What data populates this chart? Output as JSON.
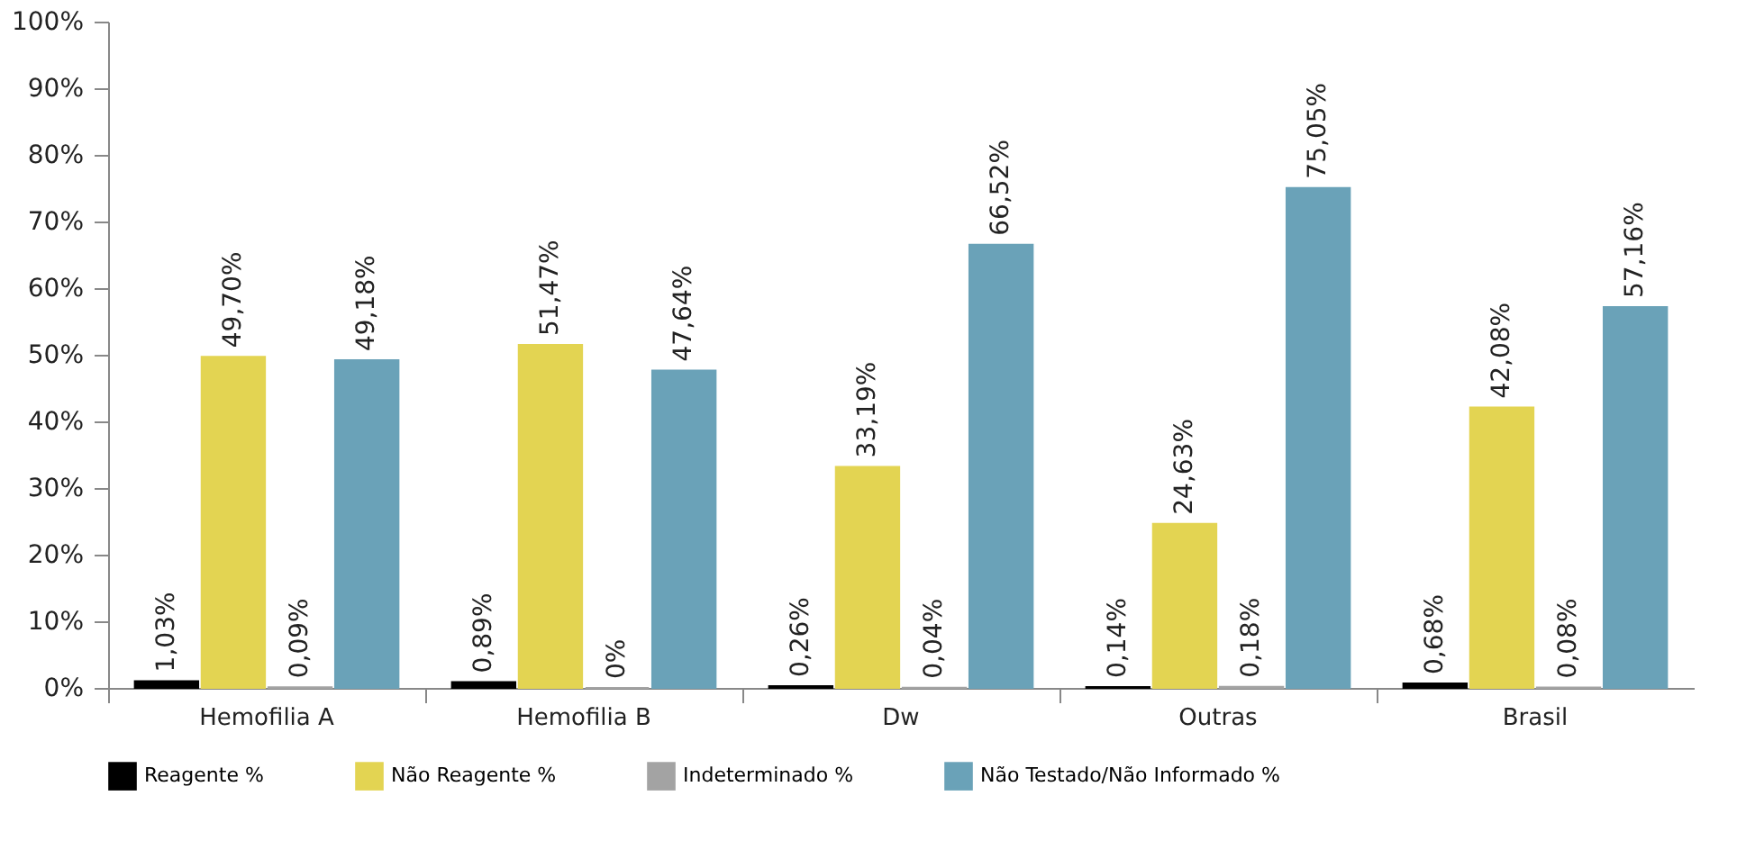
{
  "chart_data": {
    "type": "bar",
    "categories": [
      "Hemofilia A",
      "Hemofilia B",
      "Dw",
      "Outras",
      "Brasil"
    ],
    "series": [
      {
        "name": "Reagente %",
        "color": "#000000",
        "values": [
          1.03,
          0.89,
          0.26,
          0.14,
          0.68
        ],
        "value_labels": [
          "1,03%",
          "0,89%",
          "0,26%",
          "0,14%",
          "0,68%"
        ]
      },
      {
        "name": "Não Reagente %",
        "color": "#e3d452",
        "values": [
          49.7,
          51.47,
          33.19,
          24.63,
          42.08
        ],
        "value_labels": [
          "49,70%",
          "51,47%",
          "33,19%",
          "24,63%",
          "42,08%"
        ]
      },
      {
        "name": "Indeterminado %",
        "color": "#a3a3a3",
        "values": [
          0.09,
          0,
          0.04,
          0.18,
          0.08
        ],
        "value_labels": [
          "0,09%",
          "0%",
          "0,04%",
          "0,18%",
          "0,08%"
        ]
      },
      {
        "name": "Não Testado/Não Informado %",
        "color": "#6aa2b8",
        "values": [
          49.18,
          47.64,
          66.52,
          75.05,
          57.16
        ],
        "value_labels": [
          "49,18%",
          "47,64%",
          "66,52%",
          "75,05%",
          "57,16%"
        ]
      }
    ],
    "ylim": [
      0,
      100
    ],
    "yticks": [
      {
        "value": 0,
        "label": "0%"
      },
      {
        "value": 10,
        "label": "10%"
      },
      {
        "value": 20,
        "label": "20%"
      },
      {
        "value": 30,
        "label": "30%"
      },
      {
        "value": 40,
        "label": "40%"
      },
      {
        "value": 50,
        "label": "50%"
      },
      {
        "value": 60,
        "label": "60%"
      },
      {
        "value": 70,
        "label": "70%"
      },
      {
        "value": 80,
        "label": "80%"
      },
      {
        "value": 90,
        "label": "90%"
      },
      {
        "value": 100,
        "label": "100%"
      }
    ],
    "grid": false,
    "legend": "bottom"
  }
}
